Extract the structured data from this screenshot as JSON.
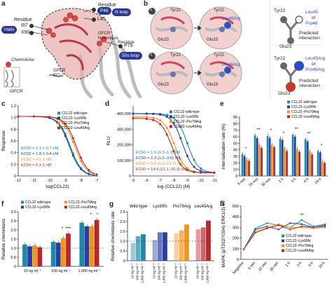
{
  "panels": {
    "a": {
      "label": "a",
      "residue_label": "Residue",
      "residue_top": "Residue",
      "helix": "Helix",
      "i87": "I87",
      "x90": "X90",
      "p46": "P46",
      "l45": "L45",
      "n_loop": "N loop",
      "gpcr_n": "GPCR\nN terminus",
      "p79": "P79",
      "loop50": "50s loop",
      "chemokine": "Chemokine",
      "gpcr_ecl2": "GPCR\nECL2",
      "gpcr": "GPCR",
      "colors": {
        "pill": "#2b3a8f",
        "protein": "#e8a0a0",
        "dark": "#555555"
      }
    },
    "b": {
      "label": "b",
      "tyr22": "Tyr22",
      "glu23": "Glu23",
      "leu45arg": "Leu45Arg",
      "pro46arg": "Pro46Arg",
      "step1": "1",
      "step2": "2",
      "legend_top": {
        "tyr": "Tyr22",
        "glu": "Glu23",
        "mut1": "Leu45",
        "or": "or",
        "mut2": "Pro46",
        "pred": "Predicted\ninteraction"
      },
      "legend_bot": {
        "tyr": "Tyr22",
        "glu": "Glu23",
        "mut1": "Leu45Arg",
        "or": "or",
        "mut2": "Pro46Arg",
        "pred": "Predicted\ninteraction"
      }
    },
    "c": {
      "label": "c"
    },
    "d": {
      "label": "d"
    },
    "e": {
      "label": "e"
    },
    "f": {
      "label": "f"
    },
    "g": {
      "label": "g"
    },
    "h": {
      "label": "h"
    }
  },
  "series_colors": [
    "#1e88a8",
    "#2540a0",
    "#f0961e",
    "#b8272c"
  ],
  "chart_data": [
    {
      "id": "c",
      "type": "line",
      "ylabel": "Response",
      "xlabel": "log(CCL22)",
      "x_ticks": [
        "-12",
        "-11",
        "-10",
        "-9",
        "-8",
        "-7"
      ],
      "y_ticks": [
        "0",
        "0.2",
        "0.4",
        "0.6",
        "0.8",
        "1.0",
        "1.2"
      ],
      "xlim": [
        -12,
        -7
      ],
      "ylim": [
        0,
        1.2
      ],
      "legend": [
        "CCL22 wild-type",
        "CCL22–Lys90fs",
        "CCL22–Pro79Arg",
        "CCL22–Leu45Arg"
      ],
      "ec50": [
        {
          "label": "EC50 = 2.1 ± 0.7 nM"
        },
        {
          "label": "EC50 = 1.8 ± 0.4 nM"
        },
        {
          "label": "EC50 = 4 ± 1 nM"
        },
        {
          "label": "EC50 = 5 ± 1 nM"
        }
      ],
      "series": [
        {
          "ec50": -8.68,
          "x": [
            -12,
            -11,
            -10,
            -9.5,
            -9,
            -8.5,
            -8,
            -7.5,
            -7
          ]
        },
        {
          "ec50": -8.74,
          "x": [
            -12,
            -11,
            -10,
            -9.5,
            -9,
            -8.5,
            -8,
            -7.5,
            -7
          ]
        },
        {
          "ec50": -8.4,
          "x": [
            -12,
            -11,
            -10,
            -9.5,
            -9,
            -8.5,
            -8,
            -7.5,
            -7
          ]
        },
        {
          "ec50": -8.3,
          "x": [
            -12,
            -11,
            -10,
            -9.5,
            -9,
            -8.5,
            -8,
            -7.5,
            -7
          ]
        }
      ]
    },
    {
      "id": "d",
      "type": "line",
      "ylabel": "RLU",
      "xlabel": "log (CCL22) (M)",
      "x_ticks": [
        "-5",
        "-6",
        "-7",
        "-8",
        "-9",
        "-10",
        "-11"
      ],
      "y_ticks": [
        "0",
        "100,000",
        "200,000",
        "300,000",
        "400,000"
      ],
      "xlim": [
        -5,
        -11
      ],
      "ylim": [
        0,
        450000
      ],
      "legend": [
        "CCL22 wild-type",
        "CCL22–Lys90fs",
        "CCL22–Pro79Arg",
        "CCL22–Leu45Arg"
      ],
      "ec50": [
        {
          "label": "EC50 = 1.0 (0.3–1.9) nM"
        },
        {
          "label": "EC50 = 2.3 (1.6–3.0) nM"
        },
        {
          "label": "EC50 = 9.0 (6.0–14.7) nM"
        },
        {
          "label": "EC50 = 14.6 (11.1–20.3) nM"
        }
      ],
      "series": [
        {
          "ec50": -9.0,
          "top": 400000
        },
        {
          "ec50": -8.64,
          "top": 400000
        },
        {
          "ec50": -8.05,
          "top": 380000
        },
        {
          "ec50": -7.84,
          "top": 370000
        }
      ]
    },
    {
      "id": "e",
      "type": "bar",
      "ylabel": "Internalization rate (%)",
      "categories": [
        "5 min",
        "15 min",
        "30 min",
        "1 h",
        "3 h",
        "6 h",
        "24 h"
      ],
      "y_ticks": [
        "0",
        "10",
        "20",
        "30",
        "40",
        "50",
        "60",
        "70",
        "80",
        "90"
      ],
      "ylim": [
        0,
        90
      ],
      "legend": [
        "CCL22 wild-type",
        "CCL22–Lys90fs",
        "CCL22–Pro79Arg",
        "CCL22–Leu45Arg"
      ],
      "series": [
        {
          "values": [
            33,
            62,
            61,
            57,
            63,
            56,
            38
          ]
        },
        {
          "values": [
            30,
            58,
            58,
            55,
            60,
            53,
            36
          ]
        },
        {
          "values": [
            25,
            47,
            47,
            42,
            41,
            38,
            22
          ]
        },
        {
          "values": [
            23,
            43,
            44,
            38,
            37,
            33,
            20
          ]
        }
      ],
      "sig": [
        "*",
        "**",
        "*",
        "*",
        "**",
        "**",
        "*"
      ]
    },
    {
      "id": "f",
      "type": "bar",
      "ylabel": "Relative chemotaxis",
      "categories": [
        "10 ng ml⁻¹",
        "100 ng ml⁻¹",
        "1,000 ng ml⁻¹"
      ],
      "y_ticks": [
        "0",
        "0.5",
        "1.0",
        "1.5",
        "2.0",
        "2.5",
        "3.0"
      ],
      "ylim": [
        0,
        3.0
      ],
      "legend": [
        "CCL22 wild-type",
        "CCL22–Lys90fs",
        "CCL22–Pro79Arg",
        "CCL22–Leu45Arg"
      ],
      "series": [
        {
          "values": [
            1.2,
            1.35,
            2.4
          ]
        },
        {
          "values": [
            1.1,
            1.3,
            2.2
          ]
        },
        {
          "values": [
            1.15,
            1.55,
            2.2
          ]
        },
        {
          "values": [
            1.05,
            1.8,
            2.55
          ]
        }
      ],
      "sig": [
        "*",
        "***",
        "*",
        "*"
      ]
    },
    {
      "id": "g",
      "type": "bar",
      "ylabel": "Relative chemotaxis rate",
      "groups": [
        "Wild-type",
        "Lys90fs",
        "Pro79Arg",
        "Leu45Arg"
      ],
      "categories": [
        "10 ng ml⁻¹",
        "100 ng ml⁻¹",
        "1,000 ng ml⁻¹"
      ],
      "y_ticks": [
        "0",
        "0.5",
        "1.0",
        "1.5",
        "2.0",
        "2.5"
      ],
      "ylim": [
        0,
        2.5
      ],
      "series": [
        {
          "values": [
            0.9,
            1.25,
            1.35
          ]
        },
        {
          "values": [
            1.05,
            1.45,
            1.45
          ]
        },
        {
          "values": [
            1.4,
            1.55,
            1.85
          ]
        },
        {
          "values": [
            1.6,
            1.7,
            2.05
          ]
        }
      ]
    },
    {
      "id": "h",
      "type": "line",
      "ylabel": "MAPK (pT202/Y204) ERK1/2) MFI",
      "categories": [
        "Negative",
        "5 min",
        "15 min",
        "30 min",
        "1 h",
        "3 h",
        "6 h",
        "24 h"
      ],
      "y_ticks": [
        "0",
        "100",
        "200",
        "300",
        "400",
        "500"
      ],
      "ylim": [
        0,
        500
      ],
      "legend": [
        "CCL22 wild-type",
        "CCL22–Lys90fs",
        "CCL22–Pro79Arg",
        "CCL22–Leu45Arg"
      ],
      "series": [
        {
          "values": [
            95,
            290,
            340,
            320,
            300,
            370,
            310,
            330
          ]
        },
        {
          "values": [
            95,
            280,
            310,
            280,
            340,
            330,
            300,
            320
          ]
        },
        {
          "values": [
            95,
            260,
            300,
            330,
            300,
            300,
            290,
            300
          ]
        },
        {
          "values": [
            95,
            250,
            290,
            320,
            280,
            310,
            300,
            310
          ]
        }
      ],
      "sig": [
        "**"
      ]
    }
  ]
}
